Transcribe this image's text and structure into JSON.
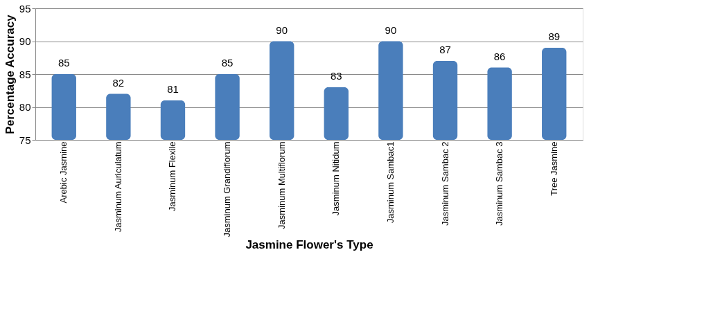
{
  "chart_data": {
    "type": "bar",
    "xlabel": "Jasmine Flower's Type",
    "ylabel": "Percentage  Accuracy",
    "categories": [
      "Arebic Jasmine",
      "Jasminum Auriculatum",
      "Jasminum Flexile",
      "Jasminum Grandiflorum",
      "Jasminum Multiflorum",
      "Jasminum Nitidum",
      "Jasminum Sambac1",
      "Jasminum Sambac 2",
      "Jasminum Sambac 3",
      "Tree Jasmine"
    ],
    "values": [
      85,
      82,
      81,
      85,
      90,
      83,
      90,
      87,
      86,
      89
    ],
    "color": "#4a7ebb",
    "ylim": [
      75,
      95
    ],
    "yticks": [
      75,
      80,
      85,
      90,
      95
    ],
    "grid": "y",
    "data_labels": true
  }
}
